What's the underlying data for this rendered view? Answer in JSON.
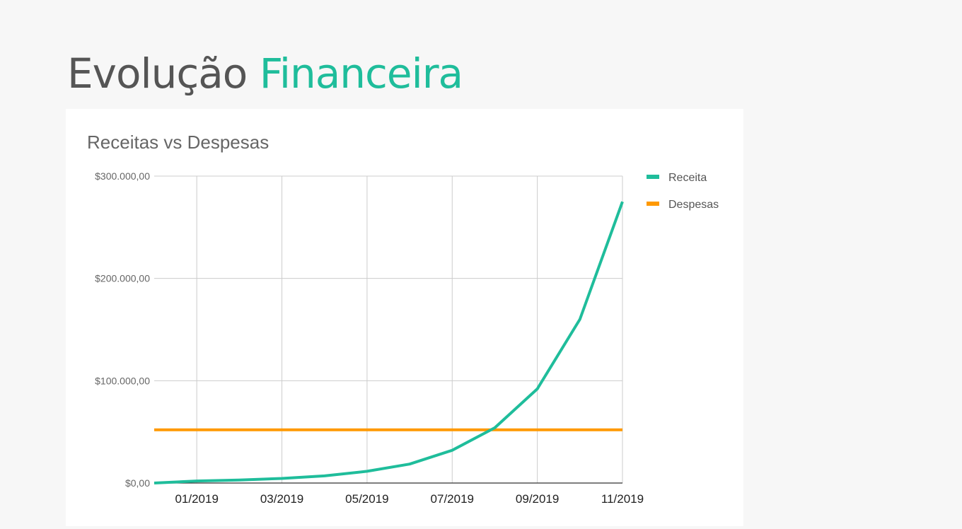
{
  "slide": {
    "title_part1": "Evolução",
    "title_part2": "Financeira"
  },
  "colors": {
    "title_gray": "#555555",
    "accent_green": "#1fbd9b",
    "expense_orange": "#ff9900"
  },
  "chart_data": {
    "type": "line",
    "title": "Receitas vs Despesas",
    "x": [
      "12/2018",
      "01/2019",
      "02/2019",
      "03/2019",
      "04/2019",
      "05/2019",
      "06/2019",
      "07/2019",
      "08/2019",
      "09/2019",
      "10/2019",
      "11/2019"
    ],
    "x_tick_labels": [
      "01/2019",
      "03/2019",
      "05/2019",
      "07/2019",
      "09/2019",
      "11/2019"
    ],
    "y_tick_labels": [
      "$0,00",
      "$100.000,00",
      "$200.000,00",
      "$300.000,00"
    ],
    "y_ticks": [
      0,
      100000,
      200000,
      300000
    ],
    "ylim": [
      0,
      300000
    ],
    "series": [
      {
        "name": "Receita",
        "color": "#1fbd9b",
        "values": [
          0,
          2000,
          3000,
          4500,
          7000,
          11500,
          18500,
          32000,
          54000,
          92000,
          160000,
          275000
        ]
      },
      {
        "name": "Despesas",
        "color": "#ff9900",
        "values": [
          52000,
          52000,
          52000,
          52000,
          52000,
          52000,
          52000,
          52000,
          52000,
          52000,
          52000,
          52000
        ]
      }
    ],
    "grid": true,
    "legend_position": "right"
  }
}
